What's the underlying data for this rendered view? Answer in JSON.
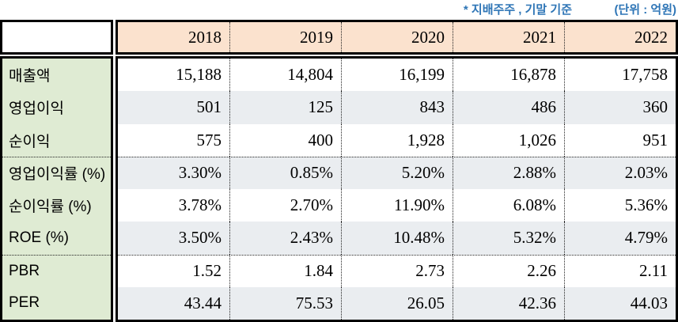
{
  "notes": {
    "left": "* 지배주주 , 기말 기준",
    "right": "(단위 : 억원)"
  },
  "colors": {
    "note_text": "#2E75B6",
    "header_bg": "#FBE2CE",
    "label_bg": "#DFEBD3",
    "zebra_bg": "#EAEDF0",
    "border": "#000000"
  },
  "chart_data": {
    "type": "table",
    "title": "",
    "unit_note": "(단위 : 억원)",
    "basis_note": "* 지배주주 , 기말 기준",
    "years": [
      "2018",
      "2019",
      "2020",
      "2021",
      "2022"
    ],
    "rows": [
      {
        "label": "매출액",
        "values": [
          "15,188",
          "14,804",
          "16,199",
          "16,878",
          "17,758"
        ]
      },
      {
        "label": "영업이익",
        "values": [
          "501",
          "125",
          "843",
          "486",
          "360"
        ]
      },
      {
        "label": "순이익",
        "values": [
          "575",
          "400",
          "1,928",
          "1,026",
          "951"
        ]
      },
      {
        "label": "영업이익률 (%)",
        "values": [
          "3.30%",
          "0.85%",
          "5.20%",
          "2.88%",
          "2.03%"
        ]
      },
      {
        "label": "순이익률 (%)",
        "values": [
          "3.78%",
          "2.70%",
          "11.90%",
          "6.08%",
          "5.36%"
        ]
      },
      {
        "label": "ROE (%)",
        "values": [
          "3.50%",
          "2.43%",
          "10.48%",
          "5.32%",
          "4.79%"
        ]
      },
      {
        "label": "PBR",
        "values": [
          "1.52",
          "1.84",
          "2.73",
          "2.26",
          "2.11"
        ]
      },
      {
        "label": "PER",
        "values": [
          "43.44",
          "75.53",
          "26.05",
          "42.36",
          "44.03"
        ]
      }
    ],
    "group_breaks_after_row_index": [
      2,
      5
    ],
    "layout": {
      "zebra_striping": true,
      "value_alignment": "right",
      "label_alignment": "left"
    }
  }
}
